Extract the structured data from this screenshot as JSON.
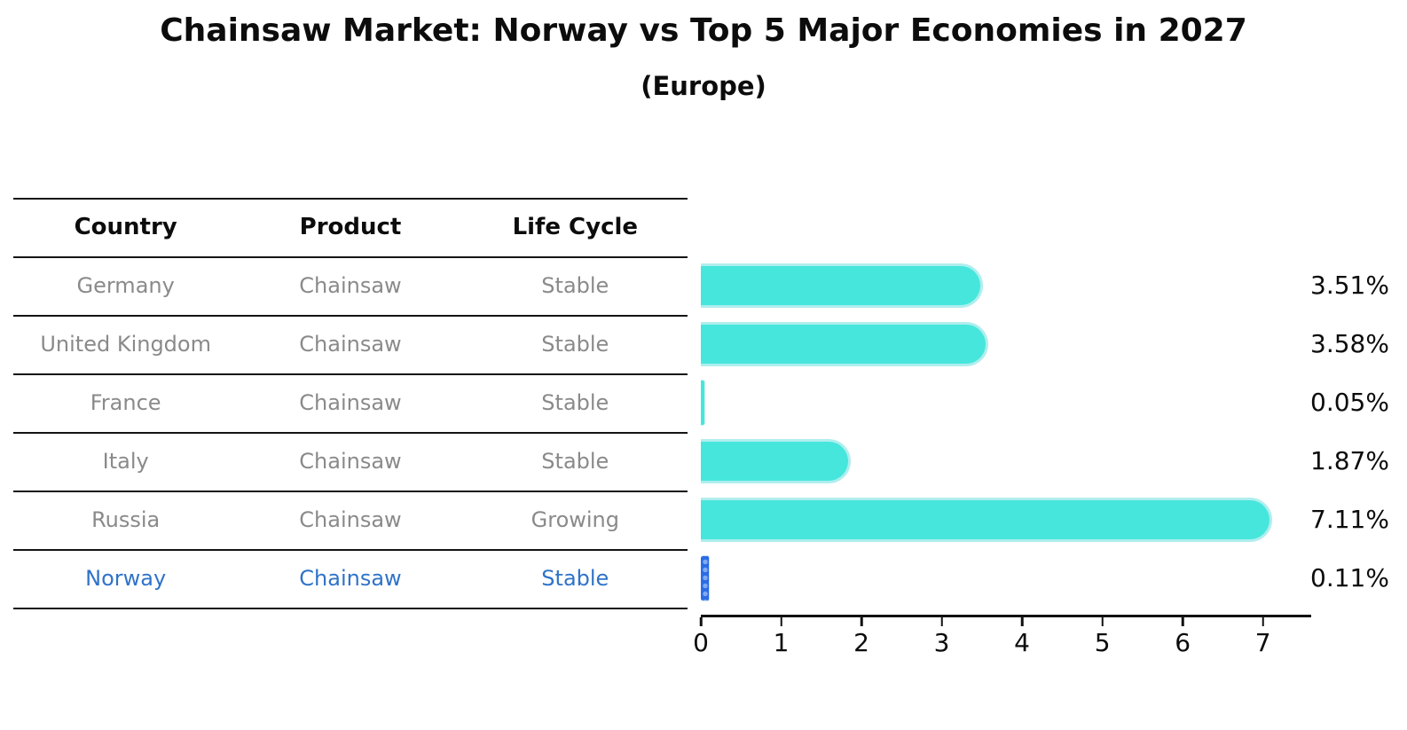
{
  "header": {
    "title": "Chainsaw Market: Norway vs Top 5 Major Economies in 2027",
    "subtitle": "(Europe)"
  },
  "table": {
    "columns": [
      "Country",
      "Product",
      "Life Cycle"
    ],
    "rows": [
      {
        "country": "Germany",
        "product": "Chainsaw",
        "life_cycle": "Stable",
        "highlight": false
      },
      {
        "country": "United Kingdom",
        "product": "Chainsaw",
        "life_cycle": "Stable",
        "highlight": false
      },
      {
        "country": "France",
        "product": "Chainsaw",
        "life_cycle": "Stable",
        "highlight": false
      },
      {
        "country": "Italy",
        "product": "Chainsaw",
        "life_cycle": "Stable",
        "highlight": false
      },
      {
        "country": "Russia",
        "product": "Chainsaw",
        "life_cycle": "Growing",
        "highlight": false
      },
      {
        "country": "Norway",
        "product": "Chainsaw",
        "life_cycle": "Stable",
        "highlight": true
      }
    ]
  },
  "chart_data": {
    "type": "bar",
    "orientation": "horizontal",
    "title": "Chainsaw Market: Norway vs Top 5 Major Economies in 2027",
    "subtitle": "(Europe)",
    "categories": [
      "Germany",
      "United Kingdom",
      "France",
      "Italy",
      "Russia",
      "Norway"
    ],
    "values": [
      3.51,
      3.58,
      0.05,
      1.87,
      7.11,
      0.11
    ],
    "value_labels": [
      "3.51%",
      "3.58%",
      "0.05%",
      "1.87%",
      "7.11%",
      "0.11%"
    ],
    "x_ticks": [
      0,
      1,
      2,
      3,
      4,
      5,
      6,
      7
    ],
    "xlim": [
      0,
      7.6
    ],
    "xlabel": "",
    "ylabel": "",
    "grid": false,
    "legend": false,
    "bar_color": "#46E6DC",
    "bar_edge_color": "#AFEEEE",
    "highlight_bar_color": "#2A6CE4",
    "highlight_text_color": "#2F73C8",
    "highlight_index": 5
  }
}
